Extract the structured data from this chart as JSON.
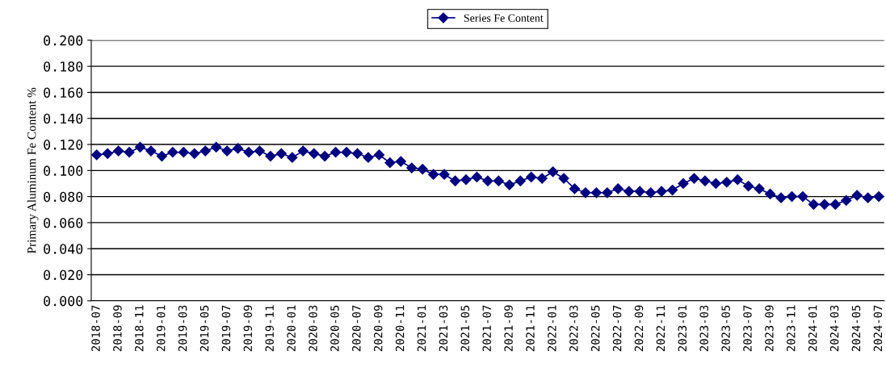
{
  "chart_data": {
    "type": "line",
    "ylabel": "Primary Aluminum Fe Content %",
    "categories": [
      "2018-07",
      null,
      "2018-09",
      null,
      "2018-11",
      null,
      "2019-01",
      null,
      "2019-03",
      null,
      "2019-05",
      null,
      "2019-07",
      null,
      "2019-09",
      null,
      "2019-11",
      null,
      "2020-01",
      null,
      "2020-03",
      null,
      "2020-05",
      null,
      "2020-07",
      null,
      "2020-09",
      null,
      "2020-11",
      null,
      "2021-01",
      null,
      "2021-03",
      null,
      "2021-05",
      null,
      "2021-07",
      null,
      "2021-09",
      null,
      "2021-11",
      null,
      "2022-01",
      null,
      "2022-03",
      null,
      "2022-05",
      null,
      "2022-07",
      null,
      "2022-09",
      null,
      "2022-11",
      null,
      "2023-01",
      null,
      "2023-03",
      null,
      "2023-05",
      null,
      "2023-07",
      null,
      "2023-09",
      null,
      "2023-11",
      null,
      "2024-01",
      null,
      "2024-03",
      null,
      "2024-05",
      null,
      "2024-07"
    ],
    "series": [
      {
        "name": "Series Fe Content",
        "color": "#000080",
        "values": [
          0.112,
          0.113,
          0.115,
          0.114,
          0.118,
          0.115,
          0.111,
          0.114,
          0.114,
          0.113,
          0.115,
          0.118,
          0.115,
          0.117,
          0.114,
          0.115,
          0.111,
          0.113,
          0.11,
          0.115,
          0.113,
          0.111,
          0.114,
          0.114,
          0.113,
          0.11,
          0.112,
          0.106,
          0.107,
          0.102,
          0.101,
          0.097,
          0.097,
          0.092,
          0.093,
          0.095,
          0.092,
          0.092,
          0.089,
          0.092,
          0.095,
          0.094,
          0.099,
          0.094,
          0.086,
          0.083,
          0.083,
          0.083,
          0.086,
          0.084,
          0.084,
          0.083,
          0.084,
          0.085,
          0.09,
          0.094,
          0.092,
          0.09,
          0.091,
          0.093,
          0.088,
          0.086,
          0.082,
          0.079,
          0.08,
          0.08,
          0.074,
          0.074,
          0.074,
          0.077,
          0.081,
          0.079,
          0.08
        ]
      }
    ],
    "ylim": [
      0,
      0.2
    ],
    "yticks": [
      {
        "value": 0,
        "label": "0.000"
      },
      {
        "value": 0.02,
        "label": "0.020"
      },
      {
        "value": 0.04,
        "label": "0.040"
      },
      {
        "value": 0.06,
        "label": "0.060"
      },
      {
        "value": 0.08,
        "label": "0.080"
      },
      {
        "value": 0.1,
        "label": "0.100"
      },
      {
        "value": 0.12,
        "label": "0.120"
      },
      {
        "value": 0.14,
        "label": "0.140"
      },
      {
        "value": 0.16,
        "label": "0.160"
      },
      {
        "value": 0.18,
        "label": "0.180"
      },
      {
        "value": 0.2,
        "label": "0.200"
      }
    ],
    "grid": "y",
    "legend": "top",
    "marker": "diamond",
    "line_style": "solid"
  }
}
